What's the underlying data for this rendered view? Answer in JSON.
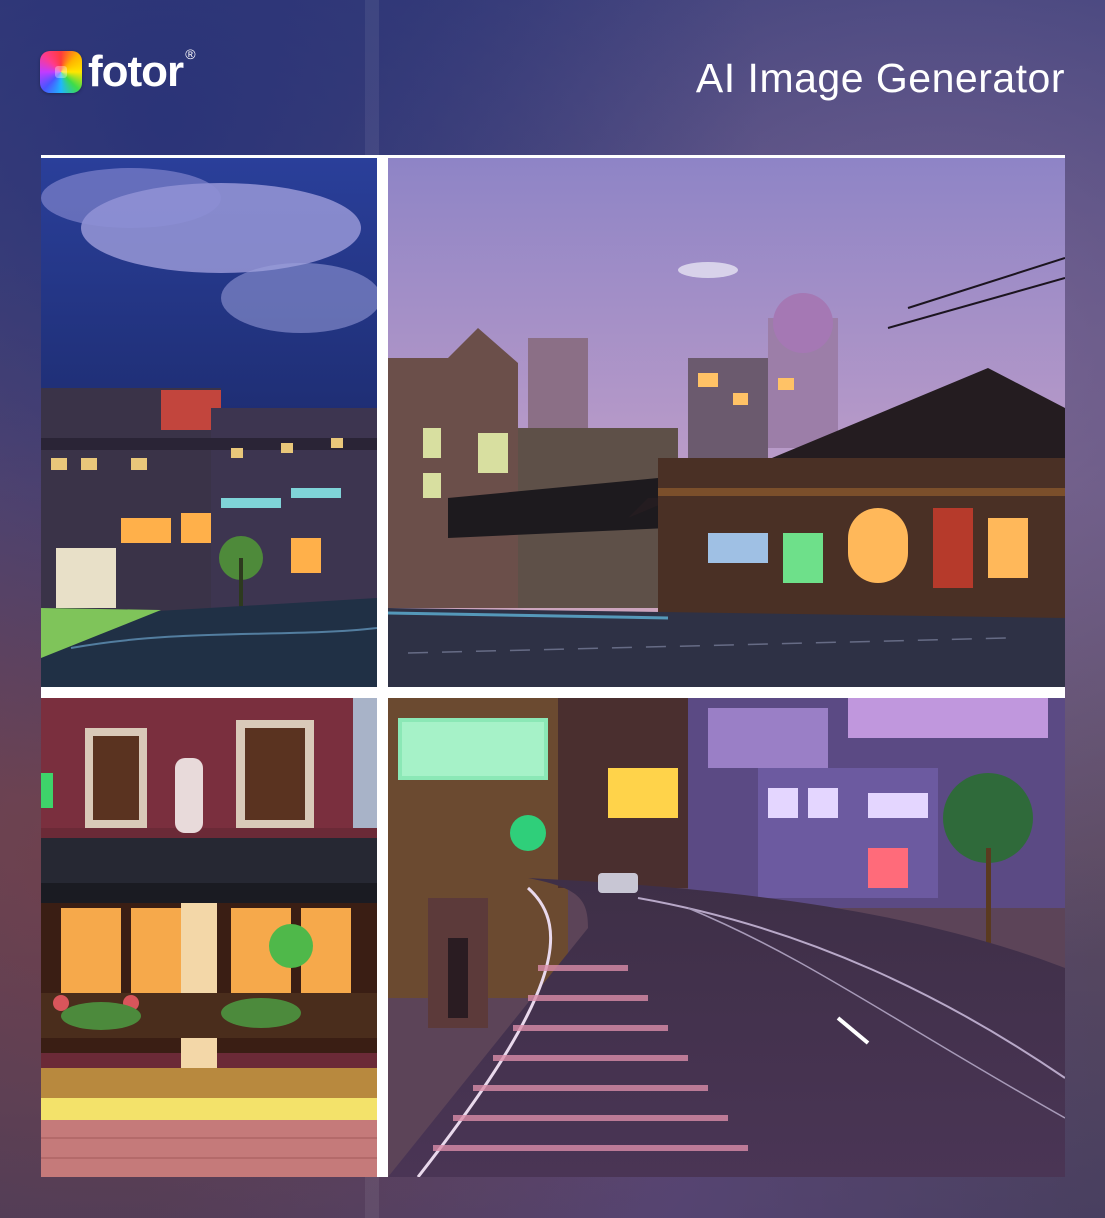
{
  "brand": {
    "name": "fotor",
    "registered_mark": "®"
  },
  "page": {
    "title": "AI Image Generator"
  },
  "collage": {
    "images": [
      {
        "name": "night-street-panorama"
      },
      {
        "name": "dusk-corner-cafe"
      },
      {
        "name": "lit-storefront"
      },
      {
        "name": "curving-neon-road"
      }
    ]
  },
  "colors": {
    "sky_night": "#1c2a6b",
    "sky_dusk": "#a78bc4",
    "warm_light": "#ffb84d",
    "neon_green": "#7cf0a0"
  }
}
